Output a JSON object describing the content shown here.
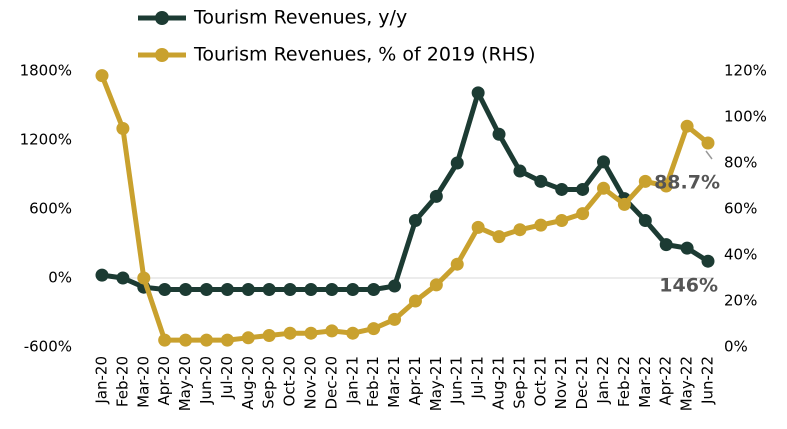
{
  "chart_data": {
    "type": "line",
    "categories": [
      "Jan-20",
      "Feb-20",
      "Mar-20",
      "Apr-20",
      "May-20",
      "Jun-20",
      "Jul-20",
      "Aug-20",
      "Sep-20",
      "Oct-20",
      "Nov-20",
      "Dec-20",
      "Jan-21",
      "Feb-21",
      "Mar-21",
      "Apr-21",
      "May-21",
      "Jun-21",
      "Jul-21",
      "Aug-21",
      "Sep-21",
      "Oct-21",
      "Nov-21",
      "Dec-21",
      "Jan-22",
      "Feb-22",
      "Mar-22",
      "Apr-22",
      "May-22",
      "Jun-22"
    ],
    "series": [
      {
        "name": "Tourism Revenues, y/y",
        "color": "#1c3b33",
        "values": [
          25,
          0,
          -80,
          -100,
          -100,
          -100,
          -100,
          -100,
          -100,
          -100,
          -100,
          -100,
          -100,
          -100,
          -70,
          500,
          710,
          1000,
          1610,
          1250,
          930,
          840,
          770,
          770,
          1010,
          690,
          500,
          290,
          260,
          146
        ],
        "value_labels": [
          null,
          null,
          null,
          null,
          null,
          null,
          null,
          null,
          null,
          null,
          null,
          null,
          null,
          null,
          null,
          null,
          null,
          null,
          null,
          null,
          null,
          null,
          null,
          null,
          null,
          null,
          null,
          null,
          null,
          "146%"
        ]
      },
      {
        "name": "Tourism Revenues, % of 2019 (RHS)",
        "color": "#c9a12e",
        "axis": "y2",
        "values": [
          118,
          95,
          30,
          3,
          3,
          3,
          3,
          4,
          5,
          6,
          6,
          7,
          6,
          8,
          12,
          20,
          27,
          36,
          52,
          48,
          51,
          53,
          55,
          58,
          69,
          62,
          72,
          70,
          96,
          88.7
        ],
        "value_labels": [
          null,
          null,
          null,
          null,
          null,
          null,
          null,
          null,
          null,
          null,
          null,
          null,
          null,
          null,
          null,
          null,
          null,
          null,
          null,
          null,
          null,
          null,
          null,
          null,
          null,
          null,
          null,
          null,
          null,
          "88.7%"
        ]
      }
    ],
    "ylim": [
      -600,
      1800
    ],
    "yticks": [
      {
        "value": -600,
        "label": "-600%"
      },
      {
        "value": 0,
        "label": "0%"
      },
      {
        "value": 600,
        "label": "600%"
      },
      {
        "value": 1200,
        "label": "1200%"
      },
      {
        "value": 1800,
        "label": "1800%"
      }
    ],
    "y2lim": [
      0,
      120
    ],
    "y2ticks": [
      {
        "value": 0,
        "label": "0%"
      },
      {
        "value": 20,
        "label": "20%"
      },
      {
        "value": 40,
        "label": "40%"
      },
      {
        "value": 60,
        "label": "60%"
      },
      {
        "value": 80,
        "label": "80%"
      },
      {
        "value": 100,
        "label": "100%"
      },
      {
        "value": 120,
        "label": "120%"
      }
    ],
    "legend": "top"
  }
}
